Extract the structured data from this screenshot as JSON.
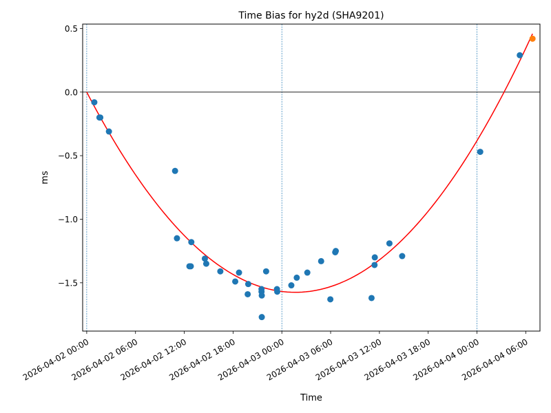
{
  "chart_data": {
    "type": "scatter",
    "title": "Time Bias for hy2d (SHA9201)",
    "xlabel": "Time",
    "ylabel": "ms",
    "xlim": [
      "2026-04-01 23:30",
      "2026-04-04 07:45"
    ],
    "ylim": [
      -1.88,
      0.535
    ],
    "x_ticks": [
      "2026-04-02 00:00",
      "2026-04-02 06:00",
      "2026-04-02 12:00",
      "2026-04-02 18:00",
      "2026-04-03 00:00",
      "2026-04-03 06:00",
      "2026-04-03 12:00",
      "2026-04-03 18:00",
      "2026-04-04 00:00",
      "2026-04-04 06:00"
    ],
    "y_ticks": [
      "0.5",
      "0.0",
      "−0.5",
      "−1.0",
      "−1.5"
    ],
    "y_tick_values": [
      0.5,
      0.0,
      -0.5,
      -1.0,
      -1.5
    ],
    "vertical_reference_lines": [
      "2026-04-02 00:00",
      "2026-04-03 00:00",
      "2026-04-04 00:00"
    ],
    "horizontal_reference_line": 0.0,
    "colors": {
      "points": "#1f77b4",
      "last_point": "#ff7f0e",
      "fit": "#ff0000",
      "vlines": "#1f77b4",
      "hline": "#000000"
    },
    "series": [
      {
        "type": "scatter",
        "points": [
          {
            "x": "2026-04-02 00:56",
            "y": -0.08
          },
          {
            "x": "2026-04-02 01:34",
            "y": -0.2
          },
          {
            "x": "2026-04-02 01:40",
            "y": -0.2
          },
          {
            "x": "2026-04-02 02:44",
            "y": -0.31
          },
          {
            "x": "2026-04-02 10:52",
            "y": -0.62
          },
          {
            "x": "2026-04-02 11:06",
            "y": -1.15
          },
          {
            "x": "2026-04-02 12:38",
            "y": -1.37
          },
          {
            "x": "2026-04-02 12:48",
            "y": -1.37
          },
          {
            "x": "2026-04-02 12:52",
            "y": -1.18
          },
          {
            "x": "2026-04-02 14:32",
            "y": -1.31
          },
          {
            "x": "2026-04-02 14:42",
            "y": -1.35
          },
          {
            "x": "2026-04-02 16:26",
            "y": -1.41
          },
          {
            "x": "2026-04-02 18:16",
            "y": -1.49
          },
          {
            "x": "2026-04-02 18:44",
            "y": -1.42
          },
          {
            "x": "2026-04-02 19:48",
            "y": -1.59
          },
          {
            "x": "2026-04-02 19:52",
            "y": -1.51
          },
          {
            "x": "2026-04-02 21:30",
            "y": -1.55
          },
          {
            "x": "2026-04-02 21:30",
            "y": -1.57
          },
          {
            "x": "2026-04-02 21:32",
            "y": -1.6
          },
          {
            "x": "2026-04-02 21:32",
            "y": -1.77
          },
          {
            "x": "2026-04-02 22:04",
            "y": -1.41
          },
          {
            "x": "2026-04-02 23:24",
            "y": -1.55
          },
          {
            "x": "2026-04-02 23:26",
            "y": -1.57
          },
          {
            "x": "2026-04-03 01:10",
            "y": -1.52
          },
          {
            "x": "2026-04-03 01:50",
            "y": -1.46
          },
          {
            "x": "2026-04-03 03:08",
            "y": -1.42
          },
          {
            "x": "2026-04-03 04:50",
            "y": -1.33
          },
          {
            "x": "2026-04-03 05:58",
            "y": -1.63
          },
          {
            "x": "2026-04-03 06:34",
            "y": -1.26
          },
          {
            "x": "2026-04-03 06:38",
            "y": -1.25
          },
          {
            "x": "2026-04-03 11:02",
            "y": -1.62
          },
          {
            "x": "2026-04-03 11:24",
            "y": -1.36
          },
          {
            "x": "2026-04-03 11:26",
            "y": -1.3
          },
          {
            "x": "2026-04-03 13:14",
            "y": -1.19
          },
          {
            "x": "2026-04-03 14:48",
            "y": -1.29
          },
          {
            "x": "2026-04-04 00:24",
            "y": -0.47
          },
          {
            "x": "2026-04-04 05:16",
            "y": 0.29
          }
        ]
      },
      {
        "type": "scatter",
        "points": [
          {
            "x": "2026-04-04 06:50",
            "y": 0.42
          }
        ]
      },
      {
        "type": "line",
        "fit": {
          "form": "quadratic",
          "vertex_x": "2026-04-03 01:40",
          "vertex_y": -1.575,
          "start_x": "2026-04-02 00:00",
          "start_y": 0.0,
          "end_x": "2026-04-04 06:50"
        }
      }
    ]
  }
}
